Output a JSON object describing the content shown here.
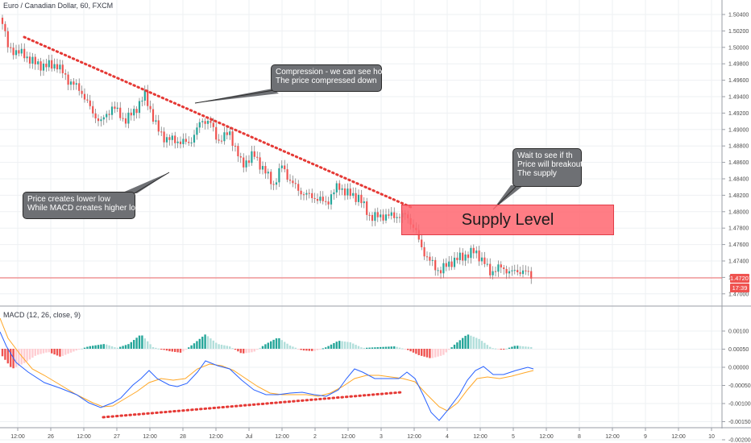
{
  "header": {
    "symbol_title": "Euro / Canadian Dollar, 60, FXCM"
  },
  "macd": {
    "title": "MACD (12, 26, close, 9)"
  },
  "price_axis": {
    "ticks": [
      "1.50400",
      "1.50200",
      "1.50000",
      "1.49800",
      "1.49600",
      "1.49400",
      "1.49200",
      "1.49000",
      "1.48800",
      "1.48600",
      "1.48400",
      "1.48200",
      "1.48000",
      "1.47800",
      "1.47600",
      "1.47400",
      "1.47200",
      "1.47000"
    ],
    "current_price": "1.47207",
    "countdown": "17:39"
  },
  "macd_axis": {
    "ticks": [
      "0.00100",
      "0.00050",
      "0.00000",
      "-0.00050",
      "-0.00100",
      "-0.00150",
      "-0.00200"
    ]
  },
  "time_axis": {
    "labels": [
      "12:00",
      "26",
      "12:00",
      "27",
      "12:00",
      "28",
      "12:00",
      "Jul",
      "12:00",
      "2",
      "12:00",
      "3",
      "12:00",
      "4",
      "12:00",
      "5",
      "12:00",
      "8",
      "12:00",
      "9",
      "12:00",
      "10"
    ]
  },
  "annotations": {
    "compression": [
      "Compression - we can see how",
      "The price compressed down"
    ],
    "lower_low": [
      "Price creates lower low",
      "While MACD creates higher low"
    ],
    "wait": [
      "Wait to see if th",
      "Price will breakout",
      "The supply"
    ],
    "supply_level": "Supply Level"
  },
  "colors": {
    "up_candle": "#26a69a",
    "down_candle": "#ef5350",
    "trendline": "#e53935",
    "macd_line": "#2962ff",
    "signal_line": "#ffa726",
    "price_line": "#f06767"
  }
}
